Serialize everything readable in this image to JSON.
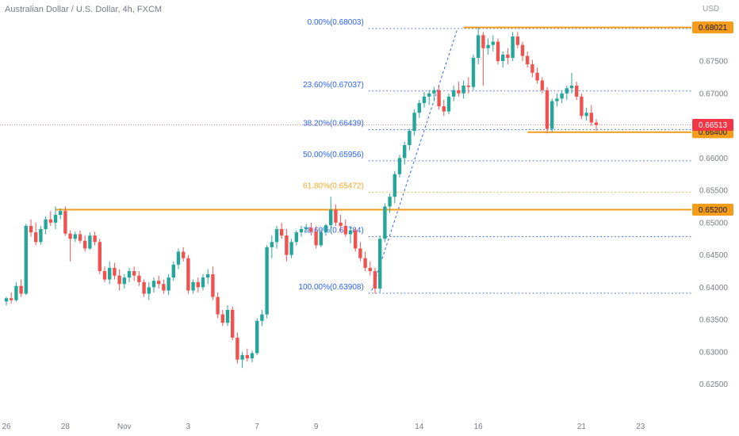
{
  "header": {
    "title": "Australian Dollar / U.S. Dollar, 4h, FXCM",
    "currency": "USD"
  },
  "colors": {
    "up": "#26a69a",
    "down": "#ef5350",
    "fib": "#2962ff",
    "fib_gold": "#f9a825",
    "hline": "#f59c1a",
    "price_tag": "#f23645",
    "axis_text": "#787b86"
  },
  "chart_data": {
    "type": "candlestick",
    "y_axis": {
      "min": 0.6225,
      "max": 0.682,
      "ticks": [
        "0.67500",
        "0.67000",
        "0.66500",
        "0.66000",
        "0.65500",
        "0.65000",
        "0.64500",
        "0.64000",
        "0.63500",
        "0.63000",
        "0.62500"
      ],
      "tick_values": [
        0.675,
        0.67,
        0.665,
        0.66,
        0.655,
        0.65,
        0.645,
        0.64,
        0.635,
        0.63,
        0.625
      ]
    },
    "x_axis": {
      "ticks": [
        {
          "label": "26",
          "index": 0
        },
        {
          "label": "28",
          "index": 12
        },
        {
          "label": "Nov",
          "index": 24
        },
        {
          "label": "3",
          "index": 37
        },
        {
          "label": "7",
          "index": 51
        },
        {
          "label": "9",
          "index": 63
        },
        {
          "label": "14",
          "index": 84
        },
        {
          "label": "16",
          "index": 96
        },
        {
          "label": "21",
          "index": 117
        },
        {
          "label": "23",
          "index": 129
        }
      ]
    },
    "fibonacci": {
      "start_index": 74,
      "end_index": 92,
      "levels": [
        {
          "label": "0.00%(0.68003)",
          "price": 0.68003,
          "color": "#2962ff"
        },
        {
          "label": "23.60%(0.67037)",
          "price": 0.67037,
          "color": "#2962ff"
        },
        {
          "label": "38.20%(0.66439)",
          "price": 0.66439,
          "color": "#2962ff"
        },
        {
          "label": "50.00%(0.65956)",
          "price": 0.65956,
          "color": "#2962ff"
        },
        {
          "label": "61.80%(0.65472)",
          "price": 0.65472,
          "color": "#f9a825"
        },
        {
          "label": "78.60%(0.64784)",
          "price": 0.64784,
          "color": "#2962ff"
        },
        {
          "label": "100.00%(0.63908)",
          "price": 0.63908,
          "color": "#2962ff"
        }
      ]
    },
    "horizontal_lines": [
      {
        "price": 0.68021,
        "start_index": 93,
        "label": "0.68021"
      },
      {
        "price": 0.652,
        "start_index": 10,
        "label": "0.65200"
      },
      {
        "price": 0.664,
        "start_index": 106,
        "label": "0.66400"
      }
    ],
    "last_price": {
      "price": 0.66513,
      "label": "0.66513"
    },
    "candles": [
      [
        0.6378,
        0.6385,
        0.6372,
        0.6383
      ],
      [
        0.6383,
        0.6392,
        0.6375,
        0.638
      ],
      [
        0.638,
        0.6408,
        0.6378,
        0.6402
      ],
      [
        0.6402,
        0.6412,
        0.6385,
        0.639
      ],
      [
        0.639,
        0.6498,
        0.6388,
        0.6495
      ],
      [
        0.6495,
        0.6505,
        0.6478,
        0.6485
      ],
      [
        0.6485,
        0.65,
        0.6465,
        0.647
      ],
      [
        0.647,
        0.6495,
        0.6466,
        0.649
      ],
      [
        0.649,
        0.651,
        0.6482,
        0.6505
      ],
      [
        0.6505,
        0.6518,
        0.6495,
        0.65
      ],
      [
        0.65,
        0.6525,
        0.649,
        0.6512
      ],
      [
        0.6512,
        0.6522,
        0.6505,
        0.6518
      ],
      [
        0.6518,
        0.6525,
        0.648,
        0.6483
      ],
      [
        0.6483,
        0.6488,
        0.644,
        0.6475
      ],
      [
        0.6475,
        0.6486,
        0.647,
        0.6482
      ],
      [
        0.6482,
        0.6488,
        0.6468,
        0.6472
      ],
      [
        0.6472,
        0.648,
        0.6455,
        0.646
      ],
      [
        0.646,
        0.6485,
        0.6458,
        0.648
      ],
      [
        0.648,
        0.6486,
        0.6465,
        0.647
      ],
      [
        0.647,
        0.6475,
        0.642,
        0.6425
      ],
      [
        0.6425,
        0.6432,
        0.6408,
        0.6412
      ],
      [
        0.6412,
        0.644,
        0.6405,
        0.643
      ],
      [
        0.643,
        0.6438,
        0.6412,
        0.6418
      ],
      [
        0.6418,
        0.6428,
        0.6395,
        0.6405
      ],
      [
        0.6405,
        0.642,
        0.6398,
        0.6415
      ],
      [
        0.6415,
        0.643,
        0.6408,
        0.6425
      ],
      [
        0.6425,
        0.6432,
        0.641,
        0.6418
      ],
      [
        0.6418,
        0.6425,
        0.6402,
        0.6408
      ],
      [
        0.6408,
        0.6412,
        0.6385,
        0.639
      ],
      [
        0.639,
        0.6408,
        0.638,
        0.64
      ],
      [
        0.64,
        0.6415,
        0.6392,
        0.641
      ],
      [
        0.641,
        0.6418,
        0.6398,
        0.6405
      ],
      [
        0.6405,
        0.6412,
        0.639,
        0.6395
      ],
      [
        0.6395,
        0.642,
        0.6388,
        0.6415
      ],
      [
        0.6415,
        0.644,
        0.641,
        0.6435
      ],
      [
        0.6435,
        0.646,
        0.6428,
        0.6455
      ],
      [
        0.6455,
        0.6462,
        0.644,
        0.6445
      ],
      [
        0.6445,
        0.645,
        0.639,
        0.6395
      ],
      [
        0.6395,
        0.6412,
        0.639,
        0.6408
      ],
      [
        0.6408,
        0.6415,
        0.6392,
        0.64
      ],
      [
        0.64,
        0.642,
        0.6395,
        0.6415
      ],
      [
        0.6415,
        0.6428,
        0.6405,
        0.642
      ],
      [
        0.642,
        0.6432,
        0.638,
        0.6385
      ],
      [
        0.6385,
        0.6392,
        0.6352,
        0.6358
      ],
      [
        0.6358,
        0.6365,
        0.634,
        0.6345
      ],
      [
        0.6345,
        0.6372,
        0.634,
        0.6365
      ],
      [
        0.6365,
        0.637,
        0.6318,
        0.6322
      ],
      [
        0.6322,
        0.633,
        0.6282,
        0.6288
      ],
      [
        0.6288,
        0.63,
        0.6275,
        0.6295
      ],
      [
        0.6295,
        0.6305,
        0.6285,
        0.629
      ],
      [
        0.629,
        0.6302,
        0.6284,
        0.6298
      ],
      [
        0.6298,
        0.6352,
        0.6295,
        0.6348
      ],
      [
        0.6348,
        0.6365,
        0.634,
        0.6358
      ],
      [
        0.6358,
        0.6465,
        0.6352,
        0.6462
      ],
      [
        0.6462,
        0.648,
        0.6445,
        0.647
      ],
      [
        0.647,
        0.6495,
        0.646,
        0.649
      ],
      [
        0.649,
        0.65,
        0.6475,
        0.648
      ],
      [
        0.648,
        0.649,
        0.644,
        0.645
      ],
      [
        0.645,
        0.6475,
        0.6445,
        0.647
      ],
      [
        0.647,
        0.6488,
        0.6465,
        0.6485
      ],
      [
        0.6485,
        0.6495,
        0.6478,
        0.649
      ],
      [
        0.649,
        0.6498,
        0.6484,
        0.6492
      ],
      [
        0.6492,
        0.65,
        0.648,
        0.6486
      ],
      [
        0.6486,
        0.6494,
        0.646,
        0.6465
      ],
      [
        0.6465,
        0.649,
        0.6462,
        0.6485
      ],
      [
        0.6485,
        0.6498,
        0.648,
        0.6496
      ],
      [
        0.6496,
        0.654,
        0.6485,
        0.652
      ],
      [
        0.652,
        0.6528,
        0.6495,
        0.65
      ],
      [
        0.65,
        0.6512,
        0.6485,
        0.6495
      ],
      [
        0.6495,
        0.6505,
        0.6478,
        0.6482
      ],
      [
        0.6482,
        0.6495,
        0.6468,
        0.6488
      ],
      [
        0.6488,
        0.6492,
        0.6455,
        0.646
      ],
      [
        0.646,
        0.647,
        0.644,
        0.6445
      ],
      [
        0.6445,
        0.6455,
        0.6425,
        0.643
      ],
      [
        0.643,
        0.644,
        0.6418,
        0.6425
      ],
      [
        0.6425,
        0.643,
        0.639,
        0.6398
      ],
      [
        0.6398,
        0.648,
        0.6392,
        0.6475
      ],
      [
        0.6475,
        0.653,
        0.647,
        0.6525
      ],
      [
        0.6525,
        0.6545,
        0.6515,
        0.654
      ],
      [
        0.654,
        0.658,
        0.653,
        0.6575
      ],
      [
        0.6575,
        0.6605,
        0.657,
        0.66
      ],
      [
        0.66,
        0.6625,
        0.659,
        0.662
      ],
      [
        0.662,
        0.6645,
        0.6612,
        0.6642
      ],
      [
        0.6642,
        0.6675,
        0.6635,
        0.667
      ],
      [
        0.667,
        0.669,
        0.6662,
        0.6685
      ],
      [
        0.6685,
        0.6702,
        0.6678,
        0.6695
      ],
      [
        0.6695,
        0.6705,
        0.6682,
        0.67
      ],
      [
        0.67,
        0.671,
        0.6688,
        0.6705
      ],
      [
        0.6705,
        0.6712,
        0.6675,
        0.668
      ],
      [
        0.668,
        0.669,
        0.6665,
        0.6672
      ],
      [
        0.6672,
        0.67,
        0.6668,
        0.6695
      ],
      [
        0.6695,
        0.6712,
        0.6688,
        0.6705
      ],
      [
        0.6705,
        0.6718,
        0.6695,
        0.67
      ],
      [
        0.67,
        0.672,
        0.6692,
        0.6712
      ],
      [
        0.6712,
        0.6725,
        0.67,
        0.671
      ],
      [
        0.671,
        0.676,
        0.6705,
        0.6755
      ],
      [
        0.6755,
        0.6802,
        0.6745,
        0.679
      ],
      [
        0.679,
        0.6795,
        0.6712,
        0.677
      ],
      [
        0.677,
        0.6785,
        0.676,
        0.6775
      ],
      [
        0.6775,
        0.679,
        0.6765,
        0.678
      ],
      [
        0.678,
        0.6785,
        0.6745,
        0.675
      ],
      [
        0.675,
        0.6765,
        0.674,
        0.676
      ],
      [
        0.676,
        0.677,
        0.6745,
        0.6755
      ],
      [
        0.6755,
        0.6795,
        0.675,
        0.6788
      ],
      [
        0.6788,
        0.6795,
        0.677,
        0.6775
      ],
      [
        0.6775,
        0.678,
        0.675,
        0.6758
      ],
      [
        0.6758,
        0.6765,
        0.674,
        0.6745
      ],
      [
        0.6745,
        0.6752,
        0.6725,
        0.6732
      ],
      [
        0.6732,
        0.674,
        0.6715,
        0.672
      ],
      [
        0.672,
        0.6725,
        0.67,
        0.6705
      ],
      [
        0.6705,
        0.671,
        0.6638,
        0.6645
      ],
      [
        0.6645,
        0.6692,
        0.664,
        0.6688
      ],
      [
        0.6688,
        0.67,
        0.668,
        0.6692
      ],
      [
        0.6692,
        0.6705,
        0.6685,
        0.67
      ],
      [
        0.67,
        0.6712,
        0.669,
        0.6708
      ],
      [
        0.6708,
        0.6732,
        0.67,
        0.6712
      ],
      [
        0.6712,
        0.6718,
        0.669,
        0.6695
      ],
      [
        0.6695,
        0.67,
        0.666,
        0.6665
      ],
      [
        0.6665,
        0.6678,
        0.6658,
        0.667
      ],
      [
        0.667,
        0.6682,
        0.665,
        0.6655
      ],
      [
        0.6655,
        0.666,
        0.6642,
        0.6651
      ]
    ]
  }
}
